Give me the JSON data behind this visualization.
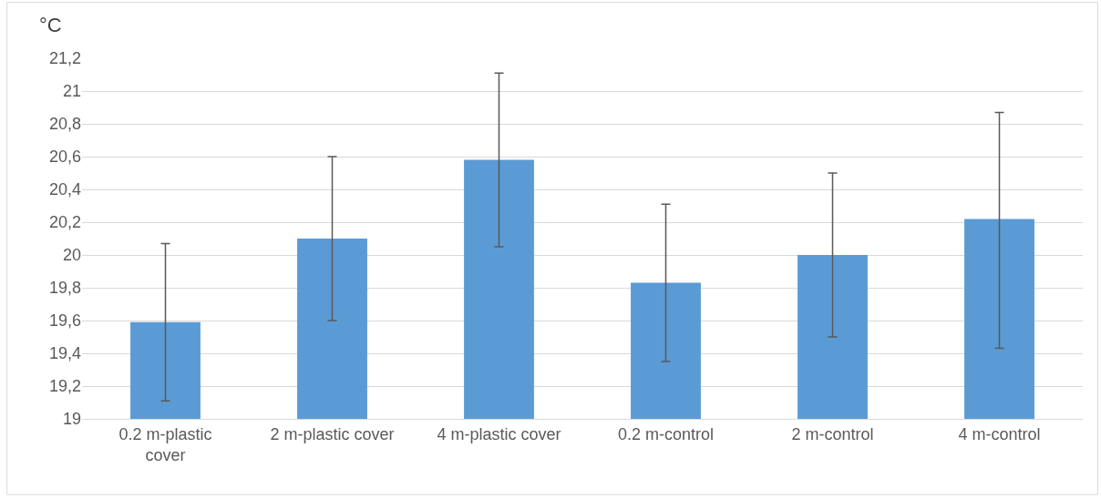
{
  "chart_data": {
    "type": "bar",
    "ylabel": "°C",
    "categories": [
      "0.2 m-plastic cover",
      "2 m-plastic cover",
      "4 m-plastic cover",
      "0.2 m-control",
      "2 m-control",
      "4 m-control"
    ],
    "values": [
      19.59,
      20.1,
      20.58,
      19.83,
      20.0,
      20.22
    ],
    "errors": [
      [
        19.11,
        20.07
      ],
      [
        19.6,
        20.6
      ],
      [
        20.05,
        21.11
      ],
      [
        19.35,
        20.31
      ],
      [
        19.5,
        20.5
      ],
      [
        19.43,
        20.87
      ]
    ],
    "color": "#5b9bd5",
    "ylim": [
      19,
      21.2
    ],
    "yticks": [
      {
        "value": 19,
        "label": "19"
      },
      {
        "value": 19.2,
        "label": "19,2"
      },
      {
        "value": 19.4,
        "label": "19,4"
      },
      {
        "value": 19.6,
        "label": "19,6"
      },
      {
        "value": 19.8,
        "label": "19,8"
      },
      {
        "value": 20,
        "label": "20"
      },
      {
        "value": 20.2,
        "label": "20,2"
      },
      {
        "value": 20.4,
        "label": "20,4"
      },
      {
        "value": 20.6,
        "label": "20,6"
      },
      {
        "value": 20.8,
        "label": "20,8"
      },
      {
        "value": 21,
        "label": "21"
      },
      {
        "value": 21.2,
        "label": "21,2"
      }
    ],
    "grid": "y"
  }
}
